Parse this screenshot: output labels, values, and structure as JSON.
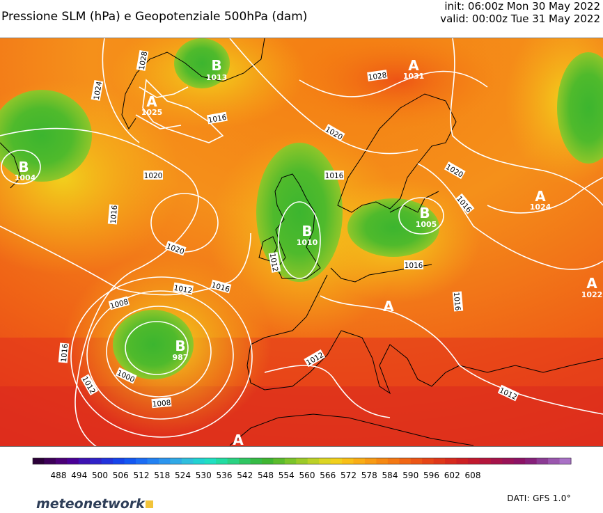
{
  "header": {
    "title": "Pressione SLM (hPa) e Geopotenziale 500hPa (dam)",
    "init": "init: 06:00z Mon 30 May 2022",
    "valid": "valid: 00:00z Tue 31 May 2022"
  },
  "footer": {
    "source": "DATI: GFS 1.0°",
    "logo_text": "meteonetwork",
    "logo_color": "#2e3e58",
    "logo_accent": "#f2c43a"
  },
  "pressure_systems": [
    {
      "letter": "A",
      "value": "1031"
    },
    {
      "letter": "B",
      "value": "1013"
    },
    {
      "letter": "A",
      "value": "1025"
    },
    {
      "letter": "B",
      "value": "1004"
    },
    {
      "letter": "B",
      "value": "1010"
    },
    {
      "letter": "B",
      "value": "1005"
    },
    {
      "letter": "A",
      "value": "1024"
    },
    {
      "letter": "B",
      "value": "987"
    },
    {
      "letter": "A",
      "value": "1022"
    },
    {
      "letter": "A",
      "value": ""
    },
    {
      "letter": "A",
      "value": ""
    }
  ],
  "isobar_labels": [
    "1028",
    "1024",
    "1028",
    "1016",
    "1020",
    "1020",
    "1016",
    "1016",
    "1020",
    "1016",
    "1012",
    "1020",
    "1016",
    "1016",
    "1012",
    "1008",
    "1016",
    "1012",
    "1000",
    "1008",
    "1012",
    "1016",
    "1012"
  ],
  "color_scale": {
    "ticks": [
      "488",
      "494",
      "500",
      "506",
      "512",
      "518",
      "524",
      "530",
      "536",
      "542",
      "548",
      "554",
      "560",
      "566",
      "572",
      "578",
      "584",
      "590",
      "596",
      "602",
      "608"
    ],
    "colors": [
      "#2b0038",
      "#3d0058",
      "#4b0077",
      "#4a0096",
      "#3d12b2",
      "#3022c8",
      "#2233dc",
      "#1644ea",
      "#1357f2",
      "#1b6cf4",
      "#2281f2",
      "#2b95ee",
      "#30a9e6",
      "#2fbedd",
      "#22d2d2",
      "#20dfc2",
      "#22dca2",
      "#2ad282",
      "#30c662",
      "#36bb45",
      "#3fb531",
      "#5bbb2c",
      "#7bc42a",
      "#9cca28",
      "#bcd126",
      "#dcd522",
      "#f1d01c",
      "#f8bf17",
      "#f9ad15",
      "#f89b14",
      "#f68913",
      "#f47813",
      "#f16614",
      "#ec5515",
      "#e64516",
      "#df3719",
      "#d72a1d",
      "#cd2023",
      "#c1192e",
      "#b4163c",
      "#a6134a",
      "#991257",
      "#8c1265",
      "#86207a",
      "#8b3b94",
      "#9a56ae",
      "#a971c6"
    ]
  }
}
